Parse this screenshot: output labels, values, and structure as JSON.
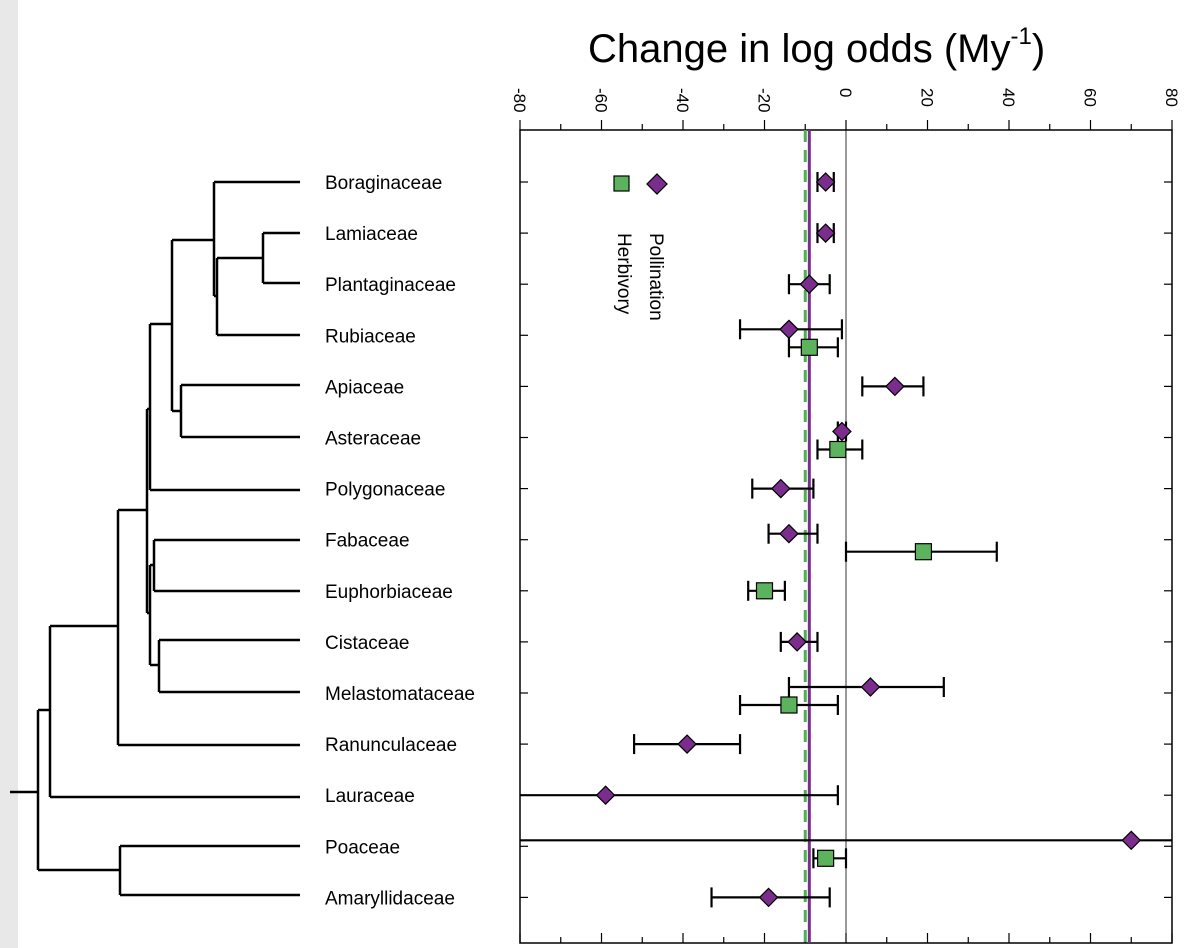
{
  "chart_data": {
    "type": "scatter",
    "title": "Change in log odds (My",
    "title_superscript": "-1",
    "title_close": ")",
    "xlim": [
      -80,
      80
    ],
    "x_ticks": [
      -80,
      -60,
      -40,
      -20,
      0,
      20,
      40,
      60,
      80
    ],
    "x_tick_labels": [
      "-80",
      "-60",
      "-40",
      "-20",
      "0",
      "20",
      "40",
      "60",
      "80"
    ],
    "tick_label_rotation": "90deg",
    "categories": [
      "Boraginaceae",
      "Lamiaceae",
      "Plantaginaceae",
      "Rubiaceae",
      "Apiaceae",
      "Asteraceae",
      "Polygonaceae",
      "Fabaceae",
      "Euphorbiaceae",
      "Cistaceae",
      "Melastomataceae",
      "Ranunculaceae",
      "Lauraceae",
      "Poaceae",
      "Amaryllidaceae"
    ],
    "reference_lines": [
      {
        "name": "zero",
        "x": 0,
        "style": "thin solid black"
      },
      {
        "name": "Pollination mean",
        "x": -9,
        "color": "#7b2d8e",
        "style": "solid"
      },
      {
        "name": "Herbivory mean",
        "x": -10,
        "color": "#4caf50",
        "style": "dashed"
      }
    ],
    "series": [
      {
        "name": "Pollination",
        "marker": "diamond",
        "color": "#7b2d8e",
        "points": [
          {
            "category": "Boraginaceae",
            "x": -5,
            "low": -7,
            "high": -3
          },
          {
            "category": "Lamiaceae",
            "x": -5,
            "low": -7,
            "high": -3
          },
          {
            "category": "Plantaginaceae",
            "x": -9,
            "low": -14,
            "high": -4
          },
          {
            "category": "Rubiaceae",
            "x": -14,
            "low": -26,
            "high": -1
          },
          {
            "category": "Apiaceae",
            "x": 12,
            "low": 4,
            "high": 19
          },
          {
            "category": "Asteraceae",
            "x": -1,
            "low": -2,
            "high": 0
          },
          {
            "category": "Polygonaceae",
            "x": -16,
            "low": -23,
            "high": -8
          },
          {
            "category": "Fabaceae",
            "x": -14,
            "low": -19,
            "high": -7
          },
          {
            "category": "Cistaceae",
            "x": -12,
            "low": -16,
            "high": -7
          },
          {
            "category": "Melastomataceae",
            "x": 6,
            "low": -14,
            "high": 24
          },
          {
            "category": "Ranunculaceae",
            "x": -39,
            "low": -52,
            "high": -26
          },
          {
            "category": "Lauraceae",
            "x": -59,
            "low": -80,
            "high": -2
          },
          {
            "category": "Poaceae",
            "x": 70,
            "low": -80,
            "high": 80
          },
          {
            "category": "Amaryllidaceae",
            "x": -19,
            "low": -33,
            "high": -4
          }
        ]
      },
      {
        "name": "Herbivory",
        "marker": "square",
        "color": "#5db35d",
        "points": [
          {
            "category": "Rubiaceae",
            "x": -9,
            "low": -14,
            "high": -2
          },
          {
            "category": "Asteraceae",
            "x": -2,
            "low": -7,
            "high": 4
          },
          {
            "category": "Fabaceae",
            "x": 19,
            "low": 0,
            "high": 37
          },
          {
            "category": "Euphorbiaceae",
            "x": -20,
            "low": -24,
            "high": -15
          },
          {
            "category": "Melastomataceae",
            "x": -14,
            "low": -26,
            "high": -2
          },
          {
            "category": "Poaceae",
            "x": -5,
            "low": -8,
            "high": 0
          }
        ]
      }
    ],
    "legend": {
      "placement": "top-left",
      "entries": [
        "Pollination",
        "Herbivory"
      ]
    },
    "grid": false
  }
}
